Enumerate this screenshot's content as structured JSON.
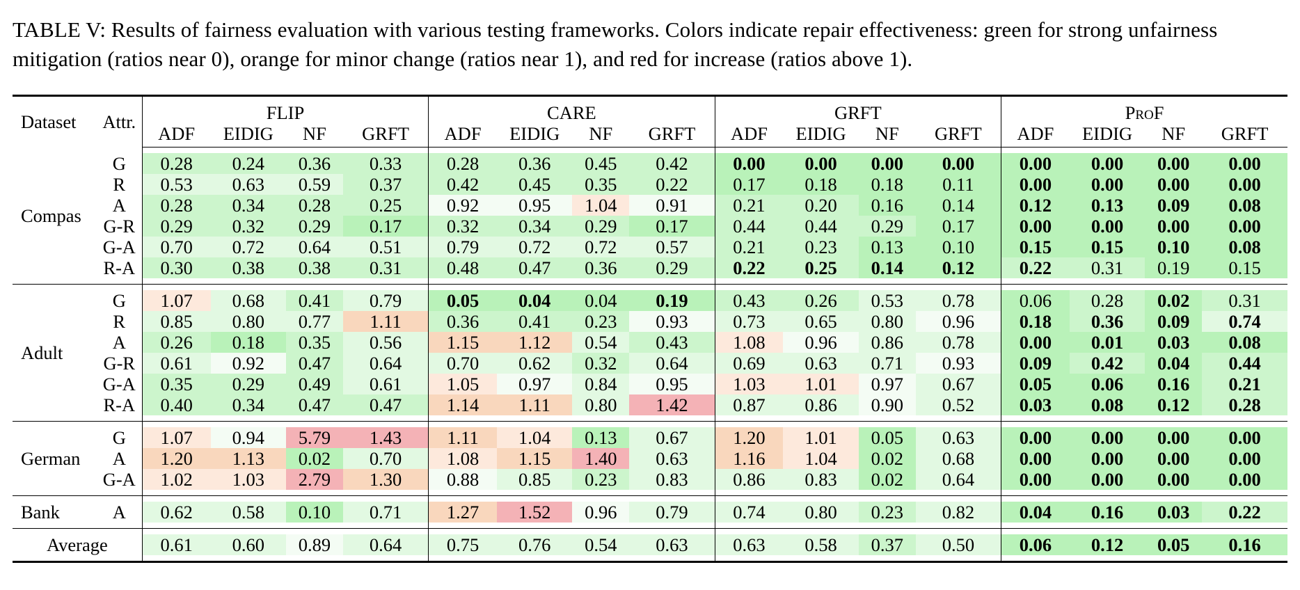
{
  "caption": "TABLE V: Results of fairness evaluation with various testing frameworks. Colors indicate repair effectiveness: green for strong unfairness mitigation (ratios near 0), orange for minor change (ratios near 1), and red for increase (ratios above 1).",
  "header": {
    "dataset": "Dataset",
    "attr": "Attr.",
    "groups": [
      "FLIP",
      "CARE",
      "GRFT",
      "ProF"
    ],
    "subcols": [
      "ADF",
      "EIDIG",
      "NF",
      "GRFT"
    ]
  },
  "colors": {
    "strong_green": "#b9f2b9",
    "green": "#ccf5cc",
    "light_green": "#e2f9e2",
    "pale": "#f4fcf4",
    "orange_light": "#fde9dc",
    "orange": "#f9d7bd",
    "red": "#f4b2b6"
  },
  "chart_data": {
    "type": "table",
    "columns": [
      "Dataset",
      "Attr.",
      "FLIP ADF",
      "FLIP EIDIG",
      "FLIP NF",
      "FLIP GRFT",
      "CARE ADF",
      "CARE EIDIG",
      "CARE NF",
      "CARE GRFT",
      "GRFT ADF",
      "GRFT EIDIG",
      "GRFT NF",
      "GRFT GRFT",
      "ProF ADF",
      "ProF EIDIG",
      "ProF NF",
      "ProF GRFT"
    ],
    "groups": [
      {
        "dataset": "Compas",
        "rows": [
          {
            "attr": "G",
            "values": [
              "0.28",
              "0.24",
              "0.36",
              "0.33",
              "0.28",
              "0.36",
              "0.45",
              "0.42",
              "0.00",
              "0.00",
              "0.00",
              "0.00",
              "0.00",
              "0.00",
              "0.00",
              "0.00"
            ],
            "bold": [
              8,
              9,
              10,
              11,
              12,
              13,
              14,
              15
            ]
          },
          {
            "attr": "R",
            "values": [
              "0.53",
              "0.63",
              "0.59",
              "0.37",
              "0.42",
              "0.45",
              "0.35",
              "0.22",
              "0.17",
              "0.18",
              "0.18",
              "0.11",
              "0.00",
              "0.00",
              "0.00",
              "0.00"
            ],
            "bold": [
              12,
              13,
              14,
              15
            ]
          },
          {
            "attr": "A",
            "values": [
              "0.28",
              "0.34",
              "0.28",
              "0.25",
              "0.92",
              "0.95",
              "1.04",
              "0.91",
              "0.21",
              "0.20",
              "0.16",
              "0.14",
              "0.12",
              "0.13",
              "0.09",
              "0.08"
            ],
            "bold": [
              12,
              13,
              14,
              15
            ]
          },
          {
            "attr": "G-R",
            "values": [
              "0.29",
              "0.32",
              "0.29",
              "0.17",
              "0.32",
              "0.34",
              "0.29",
              "0.17",
              "0.44",
              "0.44",
              "0.29",
              "0.17",
              "0.00",
              "0.00",
              "0.00",
              "0.00"
            ],
            "bold": [
              12,
              13,
              14,
              15
            ]
          },
          {
            "attr": "G-A",
            "values": [
              "0.70",
              "0.72",
              "0.64",
              "0.51",
              "0.79",
              "0.72",
              "0.72",
              "0.57",
              "0.21",
              "0.23",
              "0.13",
              "0.10",
              "0.15",
              "0.15",
              "0.10",
              "0.08"
            ],
            "bold": [
              12,
              13,
              14,
              15
            ]
          },
          {
            "attr": "R-A",
            "values": [
              "0.30",
              "0.38",
              "0.38",
              "0.31",
              "0.48",
              "0.47",
              "0.36",
              "0.29",
              "0.22",
              "0.25",
              "0.14",
              "0.12",
              "0.22",
              "0.31",
              "0.19",
              "0.15"
            ],
            "bold": [
              8,
              9,
              10,
              11,
              12
            ]
          }
        ]
      },
      {
        "dataset": "Adult",
        "rows": [
          {
            "attr": "G",
            "values": [
              "1.07",
              "0.68",
              "0.41",
              "0.79",
              "0.05",
              "0.04",
              "0.04",
              "0.19",
              "0.43",
              "0.26",
              "0.53",
              "0.78",
              "0.06",
              "0.28",
              "0.02",
              "0.31"
            ],
            "bold": [
              4,
              5,
              7,
              14
            ]
          },
          {
            "attr": "R",
            "values": [
              "0.85",
              "0.80",
              "0.77",
              "1.11",
              "0.36",
              "0.41",
              "0.23",
              "0.93",
              "0.73",
              "0.65",
              "0.80",
              "0.96",
              "0.18",
              "0.36",
              "0.09",
              "0.74"
            ],
            "bold": [
              12,
              13,
              14,
              15
            ]
          },
          {
            "attr": "A",
            "values": [
              "0.26",
              "0.18",
              "0.35",
              "0.56",
              "1.15",
              "1.12",
              "0.54",
              "0.43",
              "1.08",
              "0.96",
              "0.86",
              "0.78",
              "0.00",
              "0.01",
              "0.03",
              "0.08"
            ],
            "bold": [
              12,
              13,
              14,
              15
            ]
          },
          {
            "attr": "G-R",
            "values": [
              "0.61",
              "0.92",
              "0.47",
              "0.64",
              "0.70",
              "0.62",
              "0.32",
              "0.64",
              "0.69",
              "0.63",
              "0.71",
              "0.93",
              "0.09",
              "0.42",
              "0.04",
              "0.44"
            ],
            "bold": [
              12,
              13,
              14,
              15
            ]
          },
          {
            "attr": "G-A",
            "values": [
              "0.35",
              "0.29",
              "0.49",
              "0.61",
              "1.05",
              "0.97",
              "0.84",
              "0.95",
              "1.03",
              "1.01",
              "0.97",
              "0.67",
              "0.05",
              "0.06",
              "0.16",
              "0.21"
            ],
            "bold": [
              12,
              13,
              14,
              15
            ]
          },
          {
            "attr": "R-A",
            "values": [
              "0.40",
              "0.34",
              "0.47",
              "0.47",
              "1.14",
              "1.11",
              "0.80",
              "1.42",
              "0.87",
              "0.86",
              "0.90",
              "0.52",
              "0.03",
              "0.08",
              "0.12",
              "0.28"
            ],
            "bold": [
              12,
              13,
              14,
              15
            ]
          }
        ]
      },
      {
        "dataset": "German",
        "rows": [
          {
            "attr": "G",
            "values": [
              "1.07",
              "0.94",
              "5.79",
              "1.43",
              "1.11",
              "1.04",
              "0.13",
              "0.67",
              "1.20",
              "1.01",
              "0.05",
              "0.63",
              "0.00",
              "0.00",
              "0.00",
              "0.00"
            ],
            "bold": [
              12,
              13,
              14,
              15
            ]
          },
          {
            "attr": "A",
            "values": [
              "1.20",
              "1.13",
              "0.02",
              "0.70",
              "1.08",
              "1.15",
              "1.40",
              "0.63",
              "1.16",
              "1.04",
              "0.02",
              "0.68",
              "0.00",
              "0.00",
              "0.00",
              "0.00"
            ],
            "bold": [
              12,
              13,
              14,
              15
            ]
          },
          {
            "attr": "G-A",
            "values": [
              "1.02",
              "1.03",
              "2.79",
              "1.30",
              "0.88",
              "0.85",
              "0.23",
              "0.83",
              "0.86",
              "0.83",
              "0.02",
              "0.64",
              "0.00",
              "0.00",
              "0.00",
              "0.00"
            ],
            "bold": [
              12,
              13,
              14,
              15
            ]
          }
        ]
      },
      {
        "dataset": "Bank",
        "rows": [
          {
            "attr": "A",
            "values": [
              "0.62",
              "0.58",
              "0.10",
              "0.71",
              "1.27",
              "1.52",
              "0.96",
              "0.79",
              "0.74",
              "0.80",
              "0.23",
              "0.82",
              "0.04",
              "0.16",
              "0.03",
              "0.22"
            ],
            "bold": [
              12,
              13,
              14,
              15
            ]
          }
        ]
      }
    ],
    "average": {
      "label": "Average",
      "values": [
        "0.61",
        "0.60",
        "0.89",
        "0.64",
        "0.75",
        "0.76",
        "0.54",
        "0.63",
        "0.63",
        "0.58",
        "0.37",
        "0.50",
        "0.06",
        "0.12",
        "0.05",
        "0.16"
      ],
      "bold": [
        12,
        13,
        14,
        15
      ]
    }
  }
}
